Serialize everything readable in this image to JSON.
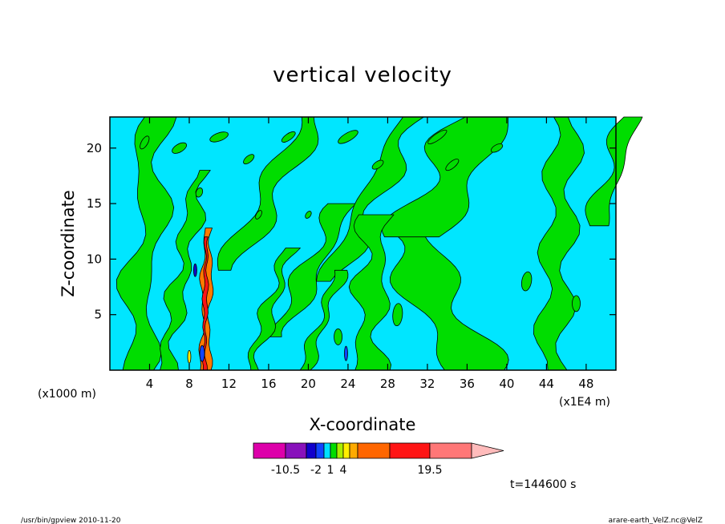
{
  "chart_data": {
    "type": "heatmap",
    "title": "vertical velocity",
    "xlabel": "X-coordinate",
    "ylabel": "Z-coordinate",
    "x_unit_left": "(x1000 m)",
    "x_unit_right": "(x1E4 m)",
    "xlim": [
      0,
      51
    ],
    "ylim": [
      0,
      22.8
    ],
    "x_ticks": [
      "4",
      "8",
      "12",
      "16",
      "20",
      "24",
      "28",
      "32",
      "36",
      "40",
      "44",
      "48"
    ],
    "y_ticks": [
      "5",
      "10",
      "15",
      "20"
    ],
    "colorbar": {
      "colors": [
        "#dd00aa",
        "#8811bb",
        "#1100cc",
        "#1144ff",
        "#00e0ff",
        "#00dd00",
        "#aaee00",
        "#ffee00",
        "#ffaa00",
        "#ff6600",
        "#ff1515",
        "#ff7777",
        "#ffbbbb"
      ],
      "labels": [
        "-10.5",
        "-2",
        "1",
        "4",
        "19.5"
      ],
      "extend": "max"
    },
    "time_label": "t=144600 s",
    "background_color": "#00e6ff",
    "positive_color": "#00dd00"
  },
  "footer": {
    "left": "/usr/bin/gpview  2010-11-20",
    "right": "arare-earth_VelZ.nc@VelZ"
  }
}
